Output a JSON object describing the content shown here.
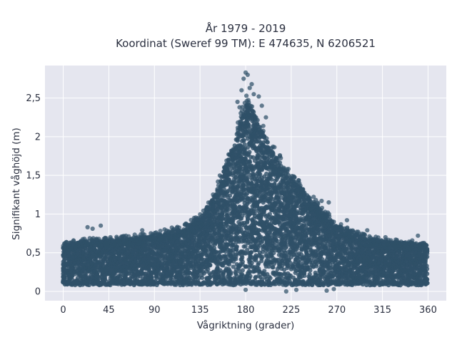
{
  "chart_data": {
    "type": "scatter",
    "title": "År 1979 - 2019",
    "subtitle": "Koordinat (Sweref 99 TM): E 474635, N 6206521",
    "xlabel": "Vågriktning (grader)",
    "ylabel": "Signifikant våghöjd (m)",
    "xlim": [
      -18,
      378
    ],
    "ylim": [
      -0.12,
      2.92
    ],
    "x_ticks": [
      0,
      45,
      90,
      135,
      180,
      225,
      270,
      315,
      360
    ],
    "x_tick_labels": [
      "0",
      "45",
      "90",
      "135",
      "180",
      "225",
      "270",
      "315",
      "360"
    ],
    "y_ticks": [
      0,
      0.5,
      1,
      1.5,
      2,
      2.5
    ],
    "y_tick_labels": [
      "0",
      "0,5",
      "1",
      "1,5",
      "2",
      "2,5"
    ],
    "grid": true,
    "legend": "none",
    "upper_envelope": {
      "x": [
        0,
        20,
        45,
        90,
        120,
        135,
        150,
        160,
        170,
        180,
        190,
        200,
        210,
        225,
        240,
        255,
        270,
        300,
        330,
        360
      ],
      "y": [
        0.6,
        0.65,
        0.66,
        0.72,
        0.82,
        0.95,
        1.25,
        1.62,
        1.95,
        2.45,
        2.3,
        1.95,
        1.75,
        1.48,
        1.25,
        1.05,
        0.85,
        0.68,
        0.63,
        0.62
      ]
    },
    "lower_bound": 0.08,
    "outliers": [
      {
        "x": 180,
        "y": 2.83
      },
      {
        "x": 178,
        "y": 2.75
      },
      {
        "x": 182,
        "y": 2.8
      },
      {
        "x": 176,
        "y": 2.6
      },
      {
        "x": 184,
        "y": 2.63
      },
      {
        "x": 188,
        "y": 2.55
      },
      {
        "x": 172,
        "y": 2.45
      },
      {
        "x": 193,
        "y": 2.52
      },
      {
        "x": 196,
        "y": 2.4
      },
      {
        "x": 186,
        "y": 2.68
      },
      {
        "x": 174,
        "y": 2.38
      },
      {
        "x": 200,
        "y": 2.25
      },
      {
        "x": 24,
        "y": 0.83
      },
      {
        "x": 29,
        "y": 0.81
      },
      {
        "x": 37,
        "y": 0.85
      },
      {
        "x": 78,
        "y": 0.79
      },
      {
        "x": 100,
        "y": 0.8
      },
      {
        "x": 262,
        "y": 1.15
      },
      {
        "x": 255,
        "y": 1.17
      },
      {
        "x": 280,
        "y": 0.92
      },
      {
        "x": 300,
        "y": 0.79
      },
      {
        "x": 318,
        "y": 0.7
      },
      {
        "x": 350,
        "y": 0.72
      },
      {
        "x": 340,
        "y": 0.62
      },
      {
        "x": 358,
        "y": 0.6
      },
      {
        "x": 230,
        "y": 0.02
      },
      {
        "x": 260,
        "y": 0.01
      },
      {
        "x": 267,
        "y": 0.03
      },
      {
        "x": 220,
        "y": 0.0
      },
      {
        "x": 180,
        "y": 0.02
      }
    ],
    "colors": {
      "marker": "#2f5068",
      "plot_background": "#e5e6ef",
      "grid": "#ffffff",
      "text": "#2a2f3f"
    }
  }
}
